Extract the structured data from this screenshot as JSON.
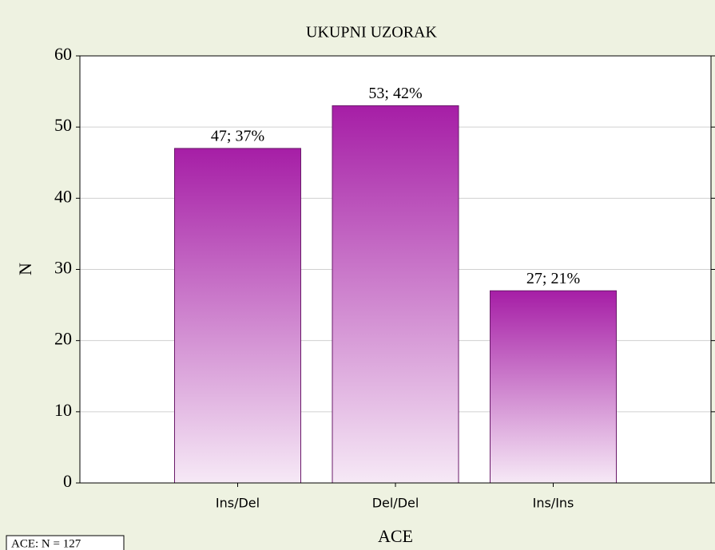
{
  "chart_data": {
    "type": "bar",
    "title": "UKUPNI UZORAK",
    "categories": [
      "Ins/Del",
      "Del/Del",
      "Ins/Ins"
    ],
    "values": [
      47,
      53,
      27
    ],
    "value_labels": [
      "47; 37%",
      "53; 42%",
      "27; 21%"
    ],
    "color": "#a61ea6",
    "xlabel": "ACE",
    "ylabel": "N",
    "ylim": [
      0,
      60
    ],
    "yticks": [
      0,
      10,
      20,
      30,
      40,
      50,
      60
    ],
    "grid": true,
    "note": "ACE:  N = 127"
  }
}
